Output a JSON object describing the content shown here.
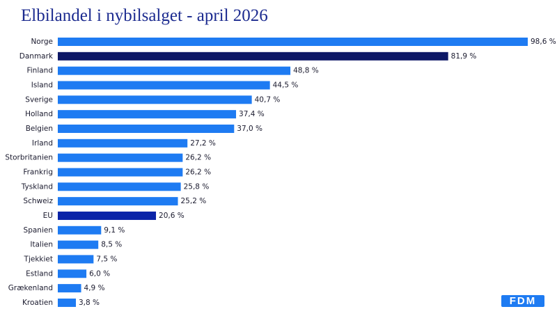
{
  "chart_data": {
    "type": "barh",
    "title": "Elbilandel i nybilsalget - april 2026",
    "categories": [
      "Norge",
      "Danmark",
      "Finland",
      "Island",
      "Sverige",
      "Holland",
      "Belgien",
      "Irland",
      "Storbritanien",
      "Frankrig",
      "Tyskland",
      "Schweiz",
      "EU",
      "Spanien",
      "Italien",
      "Tjekkiet",
      "Estland",
      "Grækenland",
      "Kroatien"
    ],
    "values": [
      98.6,
      81.9,
      48.8,
      44.5,
      40.7,
      37.4,
      37.0,
      27.2,
      26.2,
      26.2,
      25.8,
      25.2,
      20.6,
      9.1,
      8.5,
      7.5,
      6.0,
      4.9,
      3.8
    ],
    "value_labels": [
      "98,6 %",
      "81,9 %",
      "48,8 %",
      "44,5 %",
      "40,7 %",
      "37,4 %",
      "37,0 %",
      "27,2 %",
      "26,2 %",
      "26,2 %",
      "25,8 %",
      "25,2 %",
      "20,6 %",
      "9,1 %",
      "8,5 %",
      "7,5 %",
      "6,0 %",
      "4,9 %",
      "3,8 %"
    ],
    "colors": [
      "#1e7bf2",
      "#0d1866",
      "#1e7bf2",
      "#1e7bf2",
      "#1e7bf2",
      "#1e7bf2",
      "#1e7bf2",
      "#1e7bf2",
      "#1e7bf2",
      "#1e7bf2",
      "#1e7bf2",
      "#1e7bf2",
      "#0b24a8",
      "#1e7bf2",
      "#1e7bf2",
      "#1e7bf2",
      "#1e7bf2",
      "#1e7bf2",
      "#1e7bf2"
    ]
  },
  "logo": "FDM"
}
